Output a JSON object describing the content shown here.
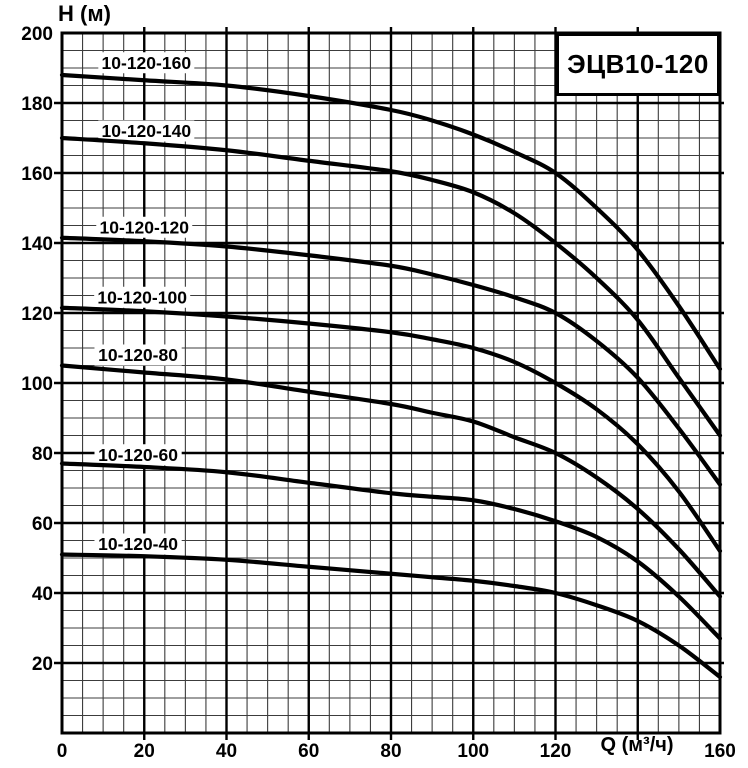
{
  "title_box": {
    "text": "ЭЦВ10-120"
  },
  "axes": {
    "y": {
      "title": "H (м)",
      "min": 0,
      "max": 200,
      "major_step": 20,
      "minor_step": 5,
      "ticks": [
        20,
        40,
        60,
        80,
        100,
        120,
        140,
        160,
        180,
        200
      ]
    },
    "x": {
      "title": "Q (м³/ч)",
      "min": 0,
      "max": 160,
      "major_step": 20,
      "minor_step": 5,
      "ticks": [
        0,
        20,
        40,
        60,
        80,
        100,
        120,
        160
      ],
      "title_at": 140
    }
  },
  "chart_data": {
    "type": "line",
    "title": "ЭЦВ10-120",
    "xlabel": "Q (м³/ч)",
    "ylabel": "H (м)",
    "xlim": [
      0,
      160
    ],
    "ylim": [
      0,
      200
    ],
    "grid": "major every 20, minor every 5, on",
    "legend_position": "inline labels above each curve",
    "line_color": "#000000",
    "x": [
      0,
      20,
      40,
      60,
      80,
      90,
      100,
      110,
      120,
      130,
      140,
      150,
      160
    ],
    "series": [
      {
        "name": "10-120-160",
        "values": [
          188,
          186.5,
          185,
          182,
          178,
          175,
          171,
          166,
          160,
          150,
          138,
          122,
          104
        ],
        "label_q": 20.5,
        "label_h": 191.5
      },
      {
        "name": "10-120-140",
        "values": [
          170,
          168.5,
          166.5,
          163.5,
          160.5,
          158,
          154.5,
          148.5,
          140,
          130,
          118,
          101.5,
          85
        ],
        "label_q": 20.5,
        "label_h": 172
      },
      {
        "name": "10-120-120",
        "values": [
          141.5,
          140.5,
          139,
          136.5,
          133.5,
          131,
          128,
          124.5,
          120,
          112,
          101.5,
          87,
          71
        ],
        "label_q": 20,
        "label_h": 144.5
      },
      {
        "name": "10-120-100",
        "values": [
          121.5,
          120.5,
          119,
          117,
          114.5,
          112.5,
          110,
          106,
          100,
          92.5,
          82.5,
          69,
          52
        ],
        "label_q": 19.5,
        "label_h": 124.5
      },
      {
        "name": "10-120-80",
        "values": [
          105,
          103,
          101,
          97.5,
          94,
          91.5,
          89,
          84.5,
          80,
          73,
          64,
          52.5,
          39
        ],
        "label_q": 18.5,
        "label_h": 108
      },
      {
        "name": "10-120-60",
        "values": [
          77,
          76,
          74.5,
          71.5,
          68.5,
          67.5,
          66.5,
          64,
          60.5,
          56,
          49,
          39,
          27
        ],
        "label_q": 18.5,
        "label_h": 79.5
      },
      {
        "name": "10-120-40",
        "values": [
          51,
          50.5,
          49.5,
          47.5,
          45.5,
          44.5,
          43.5,
          42,
          40,
          36.5,
          32,
          25,
          16
        ],
        "label_q": 18.5,
        "label_h": 54
      }
    ]
  }
}
